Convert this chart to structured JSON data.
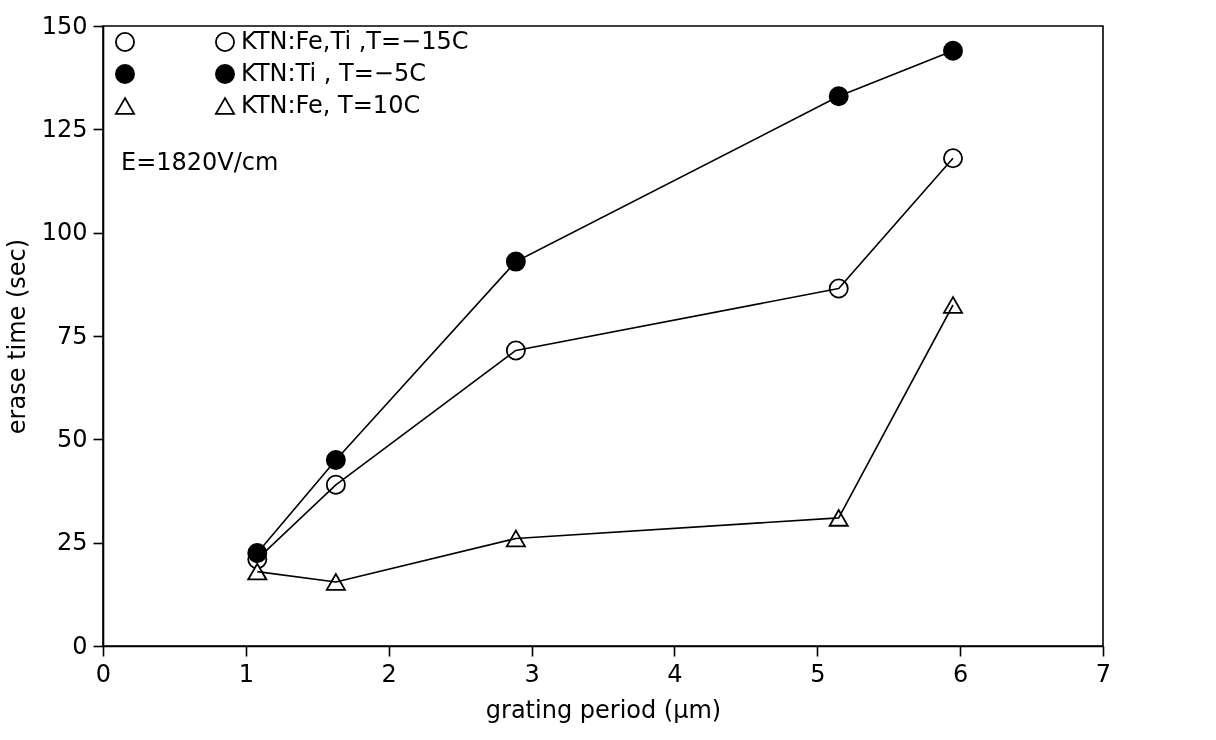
{
  "chart_data": {
    "type": "line",
    "xlabel": "grating period (μm)",
    "ylabel": "erase time (sec)",
    "x": [
      1.08,
      1.63,
      2.89,
      5.15,
      5.95
    ],
    "series": [
      {
        "name": "KTN:Fe,Ti ,T=−15C",
        "color": "#000000",
        "marker": "circle",
        "values": [
          21,
          39,
          71.5,
          86.5,
          118
        ]
      },
      {
        "name": "KTN:Ti , T=−5C",
        "color": "#000000",
        "marker": "circle",
        "values": [
          22.5,
          45,
          93,
          133,
          144
        ]
      },
      {
        "name": "KTN:Fe, T=10C",
        "color": "#000000",
        "marker": "triangle",
        "values": [
          18,
          15.5,
          26,
          31,
          82.5
        ]
      }
    ],
    "xlim": [
      0,
      7
    ],
    "xticks": [
      0,
      1,
      2,
      3,
      4,
      5,
      6,
      7
    ],
    "ylim": [
      0,
      150
    ],
    "yticks": [
      0,
      25,
      50,
      75,
      100,
      125,
      150
    ],
    "annotations": [
      "E=1820V/cm"
    ],
    "legend": "top left",
    "grid": false,
    "line_style": "solid"
  }
}
